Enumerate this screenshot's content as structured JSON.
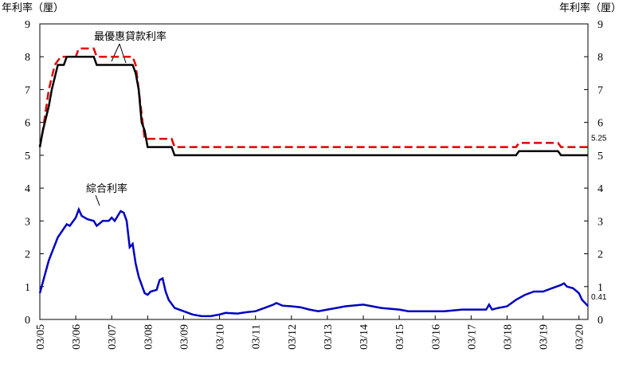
{
  "chart_data": {
    "type": "line",
    "ylabel": "年利率（厘）",
    "y2label": "年利率（厘）",
    "annotations": [
      "最優惠貸款利率",
      "綜合利率"
    ],
    "xlim": [
      "03/05",
      "06/20"
    ],
    "xticks": [
      "03/05",
      "03/06",
      "03/07",
      "03/08",
      "03/09",
      "03/10",
      "03/11",
      "03/12",
      "03/13",
      "03/14",
      "03/15",
      "03/16",
      "03/17",
      "03/18",
      "03/19",
      "03/20"
    ],
    "ylim": [
      0,
      9
    ],
    "yticks": [
      0,
      1,
      2,
      3,
      4,
      5,
      6,
      7,
      8,
      9
    ],
    "y2lim": [
      0,
      9
    ],
    "y2ticks": [
      0,
      1,
      2,
      3,
      4,
      5,
      6,
      7,
      8,
      9
    ],
    "series": [
      {
        "color": "#e00000",
        "dash": true,
        "x": [
          "03/05",
          "04/05",
          "06/05",
          "08/05",
          "10/05",
          "03/06",
          "04/06",
          "09/06",
          "10/06",
          "10/07",
          "11/07",
          "12/07",
          "01/08",
          "02/08",
          "11/08",
          "12/08",
          "06/18",
          "07/18",
          "08/19",
          "09/19",
          "06/20"
        ],
        "values": [
          5.25,
          5.75,
          7.0,
          7.75,
          8.0,
          8.0,
          8.25,
          8.25,
          8.0,
          8.0,
          7.75,
          7.0,
          6.25,
          5.5,
          5.5,
          5.25,
          5.25,
          5.375,
          5.375,
          5.25,
          5.25
        ]
      },
      {
        "color": "#000000",
        "dash": false,
        "x": [
          "03/05",
          "04/05",
          "06/05",
          "07/05",
          "09/05",
          "11/05",
          "12/05",
          "09/06",
          "10/06",
          "10/07",
          "11/07",
          "12/07",
          "01/08",
          "02/08",
          "03/08",
          "11/08",
          "12/08",
          "06/18",
          "07/18",
          "08/19",
          "09/19",
          "06/20"
        ],
        "values": [
          5.25,
          5.75,
          6.5,
          7.0,
          7.75,
          7.75,
          8.0,
          8.0,
          7.75,
          7.75,
          7.5,
          7.0,
          6.0,
          5.75,
          5.25,
          5.25,
          5.0,
          5.0,
          5.125,
          5.125,
          5.0,
          5.0
        ]
      },
      {
        "color": "#0000c0",
        "dash": false,
        "x": [
          "03/05",
          "06/05",
          "09/05",
          "12/05",
          "01/06",
          "03/06",
          "04/06",
          "05/06",
          "07/06",
          "09/06",
          "10/06",
          "12/06",
          "02/07",
          "03/07",
          "04/07",
          "05/07",
          "06/07",
          "07/07",
          "08/07",
          "09/07",
          "10/07",
          "11/07",
          "12/07",
          "02/08",
          "03/08",
          "04/08",
          "06/08",
          "07/08",
          "08/08",
          "09/08",
          "10/08",
          "12/08",
          "03/09",
          "06/09",
          "09/09",
          "12/09",
          "03/10",
          "05/10",
          "09/10",
          "12/10",
          "03/11",
          "06/11",
          "09/11",
          "10/11",
          "12/11",
          "03/12",
          "06/12",
          "09/12",
          "12/12",
          "03/13",
          "06/13",
          "09/13",
          "03/14",
          "06/14",
          "09/14",
          "03/15",
          "06/15",
          "12/15",
          "06/16",
          "12/16",
          "06/17",
          "08/17",
          "09/17",
          "10/17",
          "12/17",
          "03/18",
          "06/18",
          "09/18",
          "12/18",
          "03/19",
          "06/19",
          "09/19",
          "10/19",
          "11/19",
          "01/20",
          "03/20",
          "04/20",
          "06/20"
        ],
        "values": [
          0.8,
          1.8,
          2.5,
          2.9,
          2.85,
          3.1,
          3.35,
          3.15,
          3.05,
          3.0,
          2.85,
          3.0,
          3.0,
          3.1,
          3.0,
          3.15,
          3.3,
          3.25,
          3.0,
          2.2,
          2.3,
          1.7,
          1.3,
          0.8,
          0.75,
          0.85,
          0.9,
          1.2,
          1.25,
          0.85,
          0.6,
          0.35,
          0.25,
          0.15,
          0.1,
          0.1,
          0.15,
          0.2,
          0.18,
          0.22,
          0.25,
          0.35,
          0.45,
          0.5,
          0.42,
          0.4,
          0.37,
          0.3,
          0.25,
          0.3,
          0.35,
          0.4,
          0.45,
          0.4,
          0.35,
          0.3,
          0.25,
          0.25,
          0.25,
          0.3,
          0.3,
          0.3,
          0.45,
          0.3,
          0.35,
          0.4,
          0.6,
          0.75,
          0.85,
          0.85,
          0.95,
          1.05,
          1.1,
          1.0,
          0.95,
          0.8,
          0.6,
          0.41
        ]
      }
    ]
  }
}
